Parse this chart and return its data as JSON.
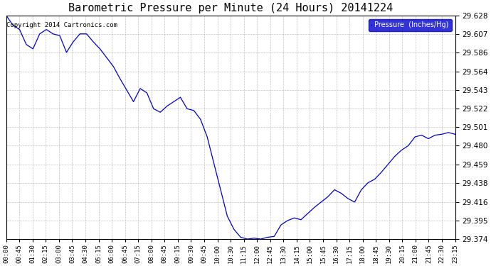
{
  "title": "Barometric Pressure per Minute (24 Hours) 20141224",
  "copyright": "Copyright 2014 Cartronics.com",
  "legend_label": "Pressure  (Inches/Hg)",
  "line_color": "#0000cc",
  "background_color": "#ffffff",
  "grid_color": "#aaaaaa",
  "ylim": [
    29.374,
    29.628
  ],
  "yticks": [
    29.374,
    29.395,
    29.416,
    29.438,
    29.459,
    29.48,
    29.501,
    29.522,
    29.543,
    29.564,
    29.586,
    29.607,
    29.628
  ],
  "xtick_labels": [
    "00:00",
    "00:45",
    "01:30",
    "02:15",
    "03:00",
    "03:45",
    "04:30",
    "05:15",
    "06:00",
    "06:45",
    "07:15",
    "08:00",
    "08:45",
    "09:15",
    "09:30",
    "09:45",
    "10:00",
    "10:30",
    "11:15",
    "12:00",
    "12:45",
    "13:30",
    "14:15",
    "15:00",
    "15:45",
    "16:30",
    "17:15",
    "18:00",
    "18:45",
    "19:30",
    "20:15",
    "21:00",
    "21:45",
    "22:30",
    "23:15"
  ],
  "pressure_data": [
    29.628,
    29.617,
    29.612,
    29.595,
    29.59,
    29.607,
    29.612,
    29.607,
    29.605,
    29.586,
    29.598,
    29.607,
    29.607,
    29.598,
    29.59,
    29.58,
    29.57,
    29.556,
    29.543,
    29.53,
    29.545,
    29.54,
    29.522,
    29.518,
    29.525,
    29.53,
    29.535,
    29.522,
    29.52,
    29.51,
    29.49,
    29.46,
    29.43,
    29.4,
    29.385,
    29.376,
    29.374,
    29.375,
    29.374,
    29.376,
    29.377,
    29.39,
    29.395,
    29.398,
    29.396,
    29.403,
    29.41,
    29.416,
    29.422,
    29.43,
    29.426,
    29.42,
    29.416,
    29.43,
    29.438,
    29.442,
    29.45,
    29.459,
    29.468,
    29.475,
    29.48,
    29.49,
    29.492,
    29.488,
    29.492,
    29.493,
    29.495,
    29.493
  ]
}
